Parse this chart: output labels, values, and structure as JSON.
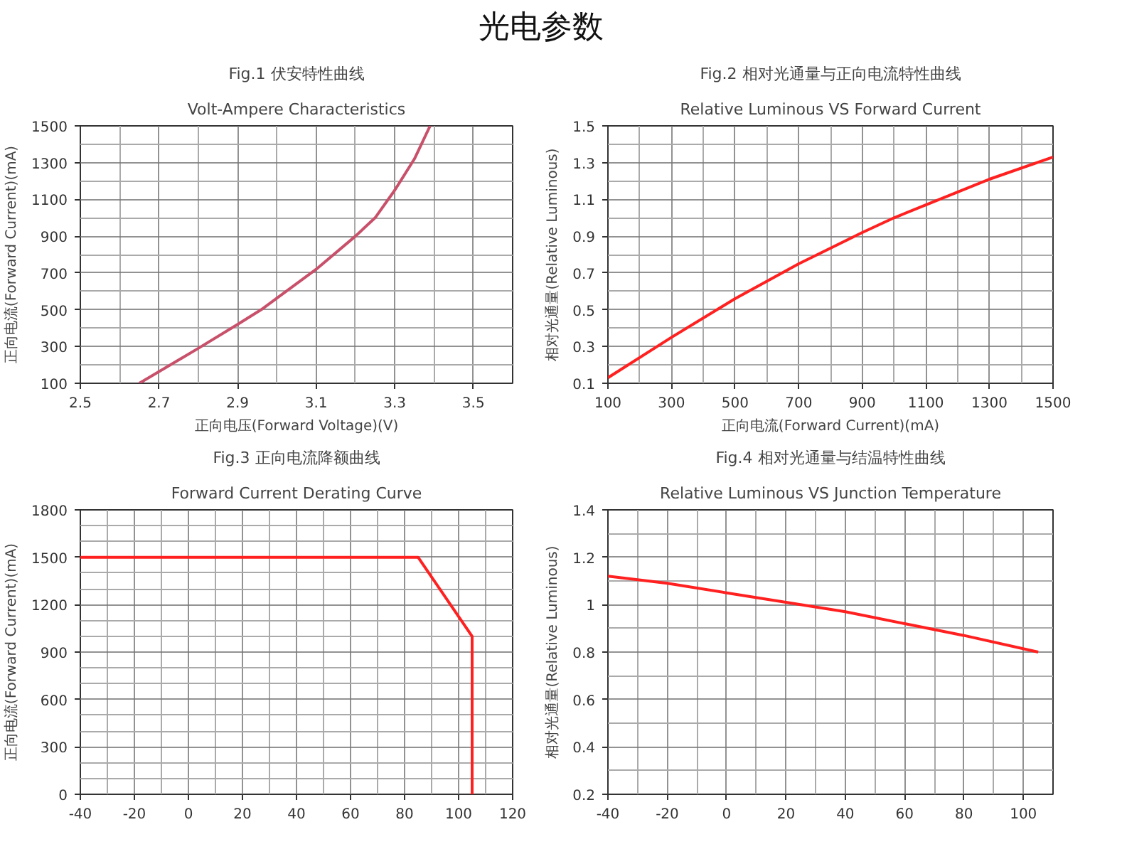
{
  "chart_data": [
    {
      "type": "line",
      "title": "Fig.1 伏安特性曲线",
      "subtitle": "Volt-Ampere Characteristics",
      "annotations": [
        "光电参数"
      ],
      "xlabel": "正向电压(Forward Voltage)(V)",
      "ylabel": "正向电流(Forward Current)(mA)",
      "x": [
        2.65,
        2.8,
        2.9,
        2.96,
        3.1,
        3.2,
        3.25,
        3.3,
        3.35,
        3.39
      ],
      "series": [
        {
          "color": "#c8506a",
          "values": [
            100,
            290,
            420,
            500,
            720,
            900,
            1000,
            1150,
            1320,
            1500
          ]
        }
      ],
      "xlim": [
        2.5,
        3.6
      ],
      "ylim": [
        100,
        1500
      ],
      "xticks": [
        2.5,
        {
          "value": 2.6,
          "label": null
        },
        2.7,
        {
          "value": 2.8,
          "label": null
        },
        2.9,
        {
          "value": 3.0,
          "label": null
        },
        3.1,
        {
          "value": 3.2,
          "label": null
        },
        3.3,
        {
          "value": 3.4,
          "label": null
        },
        3.5,
        {
          "value": 3.6,
          "label": null
        }
      ],
      "yticks": [
        100,
        {
          "value": 200,
          "label": null
        },
        300,
        {
          "value": 400,
          "label": null
        },
        500,
        {
          "value": 600,
          "label": null
        },
        700,
        {
          "value": 800,
          "label": null
        },
        900,
        {
          "value": 1000,
          "label": null
        },
        1100,
        {
          "value": 1200,
          "label": null
        },
        1300,
        {
          "value": 1400,
          "label": null
        },
        1500
      ],
      "grid": true
    },
    {
      "type": "line",
      "title": "Fig.2 相对光通量与正向电流特性曲线",
      "subtitle": "Relative Luminous VS Forward Current",
      "xlabel": "正向电流(Forward Current)(mA)",
      "ylabel": "相对光通量(Relative Luminous)",
      "x": [
        100,
        300,
        500,
        700,
        900,
        1000,
        1100,
        1300,
        1500
      ],
      "series": [
        {
          "color": "#ff2020",
          "values": [
            0.13,
            0.35,
            0.56,
            0.75,
            0.92,
            1.0,
            1.07,
            1.21,
            1.33
          ]
        }
      ],
      "xlim": [
        100,
        1500
      ],
      "ylim": [
        0.1,
        1.5
      ],
      "xticks": [
        100,
        {
          "value": 200,
          "label": null
        },
        300,
        {
          "value": 400,
          "label": null
        },
        500,
        {
          "value": 600,
          "label": null
        },
        700,
        {
          "value": 800,
          "label": null
        },
        900,
        {
          "value": 1000,
          "label": null
        },
        1100,
        {
          "value": 1200,
          "label": null
        },
        1300,
        {
          "value": 1400,
          "label": null
        },
        1500
      ],
      "yticks": [
        0.1,
        {
          "value": 0.2,
          "label": null
        },
        0.3,
        {
          "value": 0.4,
          "label": null
        },
        0.5,
        {
          "value": 0.6,
          "label": null
        },
        0.7,
        {
          "value": 0.8,
          "label": null
        },
        0.9,
        {
          "value": 1.0,
          "label": null
        },
        1.1,
        {
          "value": 1.2,
          "label": null
        },
        1.3,
        {
          "value": 1.4,
          "label": null
        },
        1.5
      ],
      "grid": true
    },
    {
      "type": "line",
      "title": "Fig.3 正向电流降额曲线",
      "subtitle": "Forward Current Derating Curve",
      "ylabel": "正向电流(Forward Current)(mA)",
      "x": [
        -40,
        85,
        105,
        105
      ],
      "series": [
        {
          "color": "#ff2020",
          "values": [
            1500,
            1500,
            1000,
            0
          ]
        }
      ],
      "xlim": [
        -40,
        120
      ],
      "ylim": [
        0,
        1800
      ],
      "xticks": [
        -40,
        {
          "value": -30,
          "label": null
        },
        -20,
        {
          "value": -10,
          "label": null
        },
        0,
        {
          "value": 10,
          "label": null
        },
        20,
        {
          "value": 30,
          "label": null
        },
        40,
        {
          "value": 50,
          "label": null
        },
        60,
        {
          "value": 70,
          "label": null
        },
        80,
        {
          "value": 90,
          "label": null
        },
        100,
        {
          "value": 110,
          "label": null
        },
        120
      ],
      "yticks": [
        0,
        {
          "value": 100,
          "label": null
        },
        {
          "value": 200,
          "label": null
        },
        300,
        {
          "value": 400,
          "label": null
        },
        {
          "value": 500,
          "label": null
        },
        600,
        {
          "value": 700,
          "label": null
        },
        {
          "value": 800,
          "label": null
        },
        900,
        {
          "value": 1000,
          "label": null
        },
        {
          "value": 1100,
          "label": null
        },
        1200,
        {
          "value": 1300,
          "label": null
        },
        {
          "value": 1400,
          "label": null
        },
        1500,
        {
          "value": 1600,
          "label": null
        },
        {
          "value": 1700,
          "label": null
        },
        1800
      ],
      "grid": true
    },
    {
      "type": "line",
      "title": "Fig.4 相对光通量与结温特性曲线",
      "subtitle": "Relative Luminous VS Junction Temperature",
      "ylabel": "相对光通量(Relative Luminous)",
      "x": [
        -40,
        -20,
        0,
        20,
        40,
        60,
        80,
        105
      ],
      "series": [
        {
          "color": "#ff2020",
          "values": [
            1.12,
            1.09,
            1.05,
            1.01,
            0.97,
            0.92,
            0.87,
            0.8
          ]
        }
      ],
      "xlim": [
        -40,
        110
      ],
      "ylim": [
        0.2,
        1.4
      ],
      "xticks": [
        -40,
        {
          "value": -30,
          "label": null
        },
        -20,
        {
          "value": -10,
          "label": null
        },
        0,
        {
          "value": 10,
          "label": null
        },
        20,
        {
          "value": 30,
          "label": null
        },
        40,
        {
          "value": 50,
          "label": null
        },
        60,
        {
          "value": 70,
          "label": null
        },
        80,
        {
          "value": 90,
          "label": null
        },
        100,
        {
          "value": 110,
          "label": null
        }
      ],
      "yticks": [
        0.2,
        {
          "value": 0.3,
          "label": null
        },
        0.4,
        {
          "value": 0.5,
          "label": null
        },
        0.6,
        {
          "value": 0.7,
          "label": null
        },
        0.8,
        {
          "value": 0.9,
          "label": null
        },
        1,
        {
          "value": 1.1,
          "label": null
        },
        1.2,
        {
          "value": 1.3,
          "label": null
        },
        1.4
      ],
      "grid": true
    }
  ]
}
